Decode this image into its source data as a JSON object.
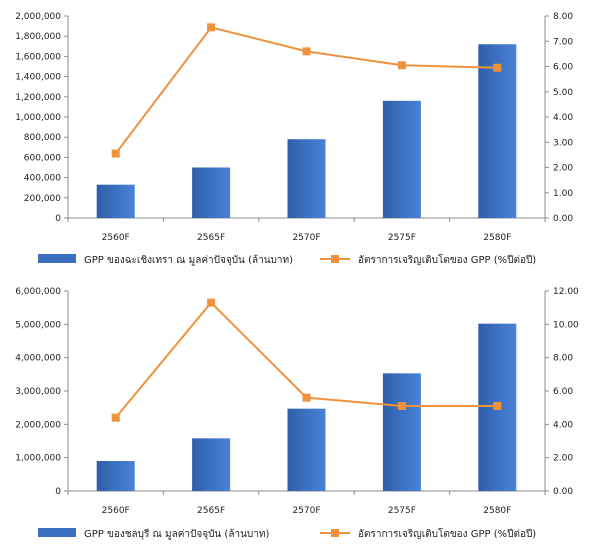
{
  "chart_data": [
    {
      "type": "bar",
      "categories": [
        "2560F",
        "2565F",
        "2570F",
        "2575F",
        "2580F"
      ],
      "series": [
        {
          "name": "GPP ของฉะเชิงเทรา ณ มูลค่าปัจจุบัน (ล้านบาท)",
          "kind": "bar",
          "axis": "left",
          "values": [
            330000,
            500000,
            780000,
            1160000,
            1720000
          ]
        },
        {
          "name": "อัตราการเจริญเติบโตของ GPP (%ปีต่อปี)",
          "kind": "line",
          "axis": "right",
          "values": [
            2.55,
            7.55,
            6.6,
            6.05,
            5.95
          ]
        }
      ],
      "left_ticks": [
        "0",
        "200,000",
        "400,000",
        "600,000",
        "800,000",
        "1,000,000",
        "1,200,000",
        "1,400,000",
        "1,600,000",
        "1,800,000",
        "2,000,000"
      ],
      "right_ticks": [
        "0.00",
        "1.00",
        "2.00",
        "3.00",
        "4.00",
        "5.00",
        "6.00",
        "7.00",
        "8.00"
      ],
      "ylim_left": [
        0,
        2000000
      ],
      "ylim_right": [
        0,
        8
      ],
      "legend_position": "bottom",
      "grid": false,
      "colors": {
        "bar": "#3b6fc0",
        "line": "#f0913e"
      }
    },
    {
      "type": "bar",
      "categories": [
        "2560F",
        "2565F",
        "2570F",
        "2575F",
        "2580F"
      ],
      "series": [
        {
          "name": "GPP ของชลบุรี ณ มูลค่าปัจจุบัน (ล้านบาท)",
          "kind": "bar",
          "axis": "left",
          "values": [
            900000,
            1580000,
            2470000,
            3530000,
            5020000
          ]
        },
        {
          "name": "อัตราการเจริญเติบโตของ GPP (%ปีต่อปี)",
          "kind": "line",
          "axis": "right",
          "values": [
            4.4,
            11.3,
            5.6,
            5.1,
            5.1
          ]
        }
      ],
      "left_ticks": [
        "0",
        "1,000,000",
        "2,000,000",
        "3,000,000",
        "4,000,000",
        "5,000,000",
        "6,000,000"
      ],
      "right_ticks": [
        "0.00",
        "2.00",
        "4.00",
        "6.00",
        "8.00",
        "10.00",
        "12.00"
      ],
      "ylim_left": [
        0,
        6000000
      ],
      "ylim_right": [
        0,
        12
      ],
      "legend_position": "bottom",
      "grid": false,
      "colors": {
        "bar": "#3b6fc0",
        "line": "#f0913e"
      }
    }
  ]
}
